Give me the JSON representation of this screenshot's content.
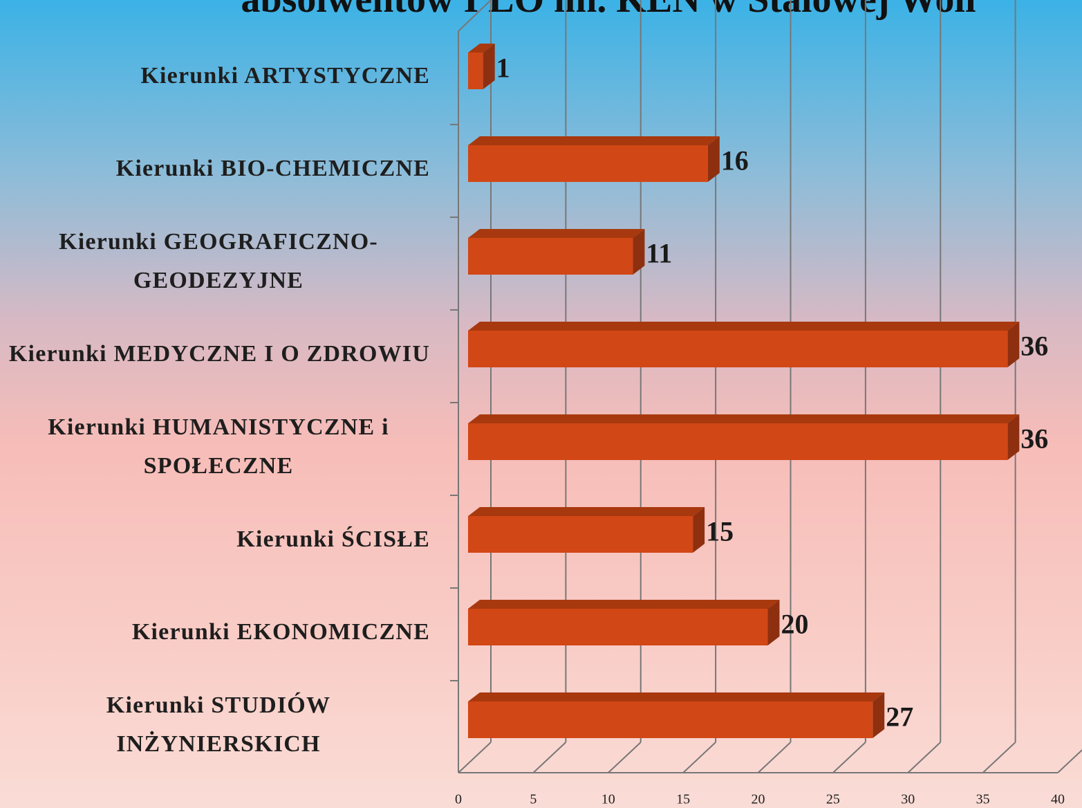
{
  "chart_data": {
    "type": "bar3d_horizontal",
    "title": "absolwentów I LO im. KEN w Stalowej Woli",
    "categories": [
      "Kierunki ARTYSTYCZNE",
      "Kierunki BIO-CHEMICZNE",
      "Kierunki GEOGRAFICZNO-GEODEZYJNE",
      "Kierunki MEDYCZNE I O ZDROWIU",
      "Kierunki HUMANISTYCZNE i SPOŁECZNE",
      "Kierunki ŚCISŁE",
      "Kierunki EKONOMICZNE",
      "Kierunki STUDIÓW INŻYNIERSKICH"
    ],
    "values": [
      1,
      16,
      11,
      36,
      36,
      15,
      20,
      27
    ],
    "color": "#d24716",
    "xlim": [
      0,
      40
    ],
    "xticks": [
      0,
      5,
      10,
      15,
      20,
      25,
      30,
      35,
      40
    ],
    "grid": true
  }
}
